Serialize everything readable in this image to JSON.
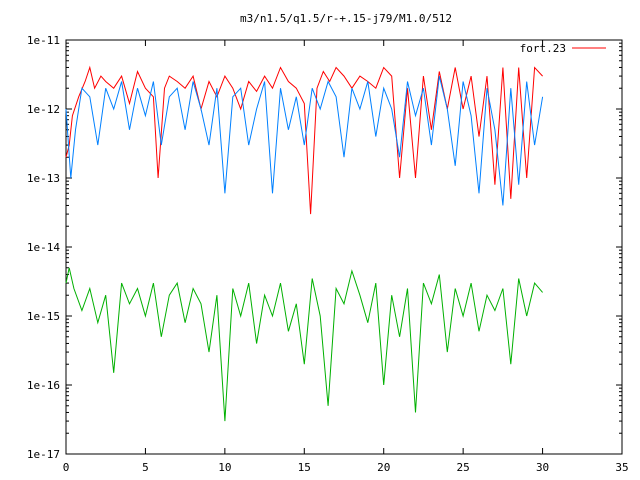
{
  "chart_data": {
    "type": "line",
    "title": "m3/n1.5/q1.5/r-+.15-j79/M1.0/512",
    "xlabel": "",
    "ylabel": "",
    "y_scale": "log",
    "xlim": [
      0,
      35
    ],
    "ylim": [
      1e-17,
      1e-11
    ],
    "x_ticks": [
      "0",
      "5",
      "10",
      "15",
      "20",
      "25",
      "30",
      "35"
    ],
    "y_ticks": [
      "1e-17",
      "1e-16",
      "1e-15",
      "1e-14",
      "1e-13",
      "1e-12",
      "1e-11"
    ],
    "grid": false,
    "legend_position": "top-right",
    "series": [
      {
        "name": "fort.23",
        "color": "#ff0000",
        "x": [
          0.0,
          0.2,
          0.4,
          0.8,
          1.2,
          1.5,
          1.8,
          2.2,
          2.5,
          3.0,
          3.5,
          4.0,
          4.5,
          5.0,
          5.5,
          5.8,
          6.2,
          6.5,
          7.0,
          7.5,
          8.0,
          8.5,
          9.0,
          9.5,
          10.0,
          10.5,
          11.0,
          11.5,
          12.0,
          12.5,
          13.0,
          13.5,
          14.0,
          14.5,
          15.0,
          15.4,
          15.8,
          16.2,
          16.6,
          17.0,
          17.5,
          18.0,
          18.5,
          19.0,
          19.5,
          20.0,
          20.5,
          21.0,
          21.5,
          22.0,
          22.5,
          23.0,
          23.5,
          24.0,
          24.5,
          25.0,
          25.5,
          26.0,
          26.5,
          27.0,
          27.5,
          28.0,
          28.5,
          29.0,
          29.5,
          30.0
        ],
        "y": [
          2e-13,
          3e-13,
          8e-13,
          1.5e-12,
          2.5e-12,
          4e-12,
          2e-12,
          3e-12,
          2.5e-12,
          2e-12,
          3e-12,
          1.2e-12,
          3.5e-12,
          2e-12,
          1.5e-12,
          1e-13,
          2e-12,
          3e-12,
          2.5e-12,
          2e-12,
          3e-12,
          1e-12,
          2.5e-12,
          1.5e-12,
          3e-12,
          2e-12,
          1e-12,
          2.5e-12,
          1.8e-12,
          3e-12,
          2e-12,
          4e-12,
          2.5e-12,
          2e-12,
          1.2e-12,
          3e-14,
          2e-12,
          3.5e-12,
          2.5e-12,
          4e-12,
          3e-12,
          2e-12,
          3e-12,
          2.5e-12,
          2e-12,
          4e-12,
          3e-12,
          1e-13,
          2e-12,
          1e-13,
          3e-12,
          5e-13,
          3.5e-12,
          1e-12,
          4e-12,
          1e-12,
          3e-12,
          4e-13,
          3e-12,
          8e-14,
          4e-12,
          5e-14,
          4e-12,
          1e-13,
          4e-12,
          3e-12
        ]
      },
      {
        "name": "",
        "color": "#0080ff",
        "x": [
          0.0,
          0.3,
          0.6,
          1.0,
          1.5,
          2.0,
          2.5,
          3.0,
          3.5,
          4.0,
          4.5,
          5.0,
          5.5,
          6.0,
          6.5,
          7.0,
          7.5,
          8.0,
          8.5,
          9.0,
          9.5,
          10.0,
          10.5,
          11.0,
          11.5,
          12.0,
          12.5,
          13.0,
          13.5,
          14.0,
          14.5,
          15.0,
          15.5,
          16.0,
          16.5,
          17.0,
          17.5,
          18.0,
          18.5,
          19.0,
          19.5,
          20.0,
          20.5,
          21.0,
          21.5,
          22.0,
          22.5,
          23.0,
          23.5,
          24.0,
          24.5,
          25.0,
          25.5,
          26.0,
          26.5,
          27.0,
          27.5,
          28.0,
          28.5,
          29.0,
          29.5,
          30.0
        ],
        "y": [
          1e-12,
          1e-13,
          5e-13,
          2e-12,
          1.5e-12,
          3e-13,
          2e-12,
          1e-12,
          2.5e-12,
          5e-13,
          2e-12,
          8e-13,
          2.5e-12,
          3e-13,
          1.5e-12,
          2e-12,
          5e-13,
          2.5e-12,
          1e-12,
          3e-13,
          2e-12,
          6e-14,
          1.5e-12,
          2e-12,
          3e-13,
          1e-12,
          2.5e-12,
          6e-14,
          2e-12,
          5e-13,
          1.5e-12,
          3e-13,
          2e-12,
          1e-12,
          2.5e-12,
          1.5e-12,
          2e-13,
          2e-12,
          1e-12,
          2.5e-12,
          4e-13,
          2e-12,
          1e-12,
          2e-13,
          2.5e-12,
          8e-13,
          2e-12,
          3e-13,
          3e-12,
          1e-12,
          1.5e-13,
          2.5e-12,
          8e-13,
          6e-14,
          2e-12,
          5e-13,
          4e-14,
          2e-12,
          8e-14,
          2.5e-12,
          3e-13,
          1.5e-12
        ]
      },
      {
        "name": "",
        "color": "#00b000",
        "x": [
          0.0,
          0.2,
          0.5,
          1.0,
          1.5,
          2.0,
          2.5,
          3.0,
          3.5,
          4.0,
          4.5,
          5.0,
          5.5,
          6.0,
          6.5,
          7.0,
          7.5,
          8.0,
          8.5,
          9.0,
          9.5,
          10.0,
          10.5,
          11.0,
          11.5,
          12.0,
          12.5,
          13.0,
          13.5,
          14.0,
          14.5,
          15.0,
          15.5,
          16.0,
          16.5,
          17.0,
          17.5,
          18.0,
          18.5,
          19.0,
          19.5,
          20.0,
          20.5,
          21.0,
          21.5,
          22.0,
          22.5,
          23.0,
          23.5,
          24.0,
          24.5,
          25.0,
          25.5,
          26.0,
          26.5,
          27.0,
          27.5,
          28.0,
          28.5,
          29.0,
          29.5,
          30.0
        ],
        "y": [
          3e-15,
          5e-15,
          2.5e-15,
          1.2e-15,
          2.5e-15,
          8e-16,
          2e-15,
          1.5e-16,
          3e-15,
          1.5e-15,
          2.5e-15,
          1e-15,
          3e-15,
          5e-16,
          2e-15,
          3e-15,
          8e-16,
          2.5e-15,
          1.5e-15,
          3e-16,
          2e-15,
          3e-17,
          2.5e-15,
          1e-15,
          3e-15,
          4e-16,
          2e-15,
          1e-15,
          3e-15,
          6e-16,
          1.5e-15,
          2e-16,
          3.5e-15,
          1e-15,
          5e-17,
          2.5e-15,
          1.5e-15,
          4.5e-15,
          2e-15,
          8e-16,
          3e-15,
          1e-16,
          2e-15,
          5e-16,
          2.5e-15,
          4e-17,
          3e-15,
          1.5e-15,
          4e-15,
          3e-16,
          2.5e-15,
          1e-15,
          3e-15,
          6e-16,
          2e-15,
          1.2e-15,
          2.5e-15,
          2e-16,
          3.5e-15,
          1e-15,
          3e-15,
          2.2e-15
        ]
      }
    ]
  }
}
